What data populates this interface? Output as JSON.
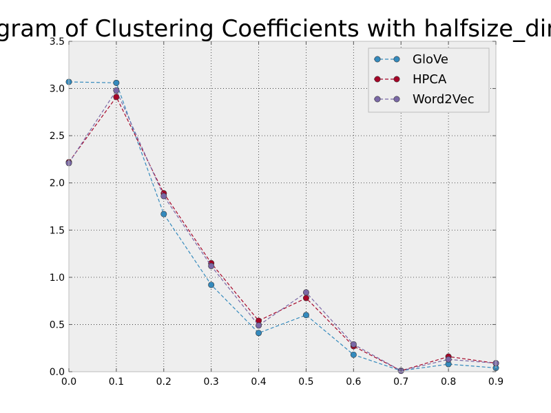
{
  "chart_data": {
    "type": "line",
    "title": "gram of Clustering Coefficients with halfsize_dim",
    "xlabel": "",
    "ylabel": "",
    "xlim": [
      0.0,
      0.9
    ],
    "ylim": [
      0.0,
      3.5
    ],
    "grid": true,
    "legend_position": "top-right",
    "x": [
      0.0,
      0.1,
      0.2,
      0.3,
      0.4,
      0.5,
      0.6,
      0.7,
      0.8,
      0.9
    ],
    "x_tick_labels": [
      "0.0",
      "0.1",
      "0.2",
      "0.3",
      "0.4",
      "0.5",
      "0.6",
      "0.7",
      "0.8",
      "0.9"
    ],
    "y_ticks": [
      0.0,
      0.5,
      1.0,
      1.5,
      2.0,
      2.5,
      3.0,
      3.5
    ],
    "y_tick_labels": [
      "0.0",
      "0.5",
      "1.0",
      "1.5",
      "2.0",
      "2.5",
      "3.0",
      "3.5"
    ],
    "series": [
      {
        "name": "GloVe",
        "color": "#348abd",
        "values": [
          3.07,
          3.06,
          1.67,
          0.92,
          0.41,
          0.6,
          0.18,
          0.01,
          0.08,
          0.04
        ]
      },
      {
        "name": "HPCA",
        "color": "#a60628",
        "values": [
          2.22,
          2.91,
          1.89,
          1.15,
          0.54,
          0.78,
          0.27,
          0.01,
          0.16,
          0.09
        ]
      },
      {
        "name": "Word2Vec",
        "color": "#7a68a6",
        "values": [
          2.21,
          2.98,
          1.86,
          1.12,
          0.49,
          0.84,
          0.29,
          0.01,
          0.13,
          0.09
        ]
      }
    ]
  }
}
